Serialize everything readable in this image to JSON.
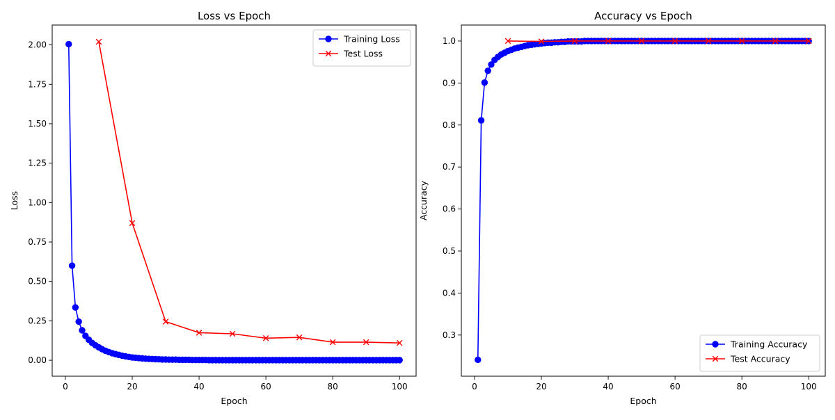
{
  "chart_data": [
    {
      "type": "line",
      "title": "Loss vs Epoch",
      "xlabel": "Epoch",
      "ylabel": "Loss",
      "xlim": [
        -3.95,
        104.95
      ],
      "ylim": [
        -0.101,
        2.126
      ],
      "xticks": [
        0,
        20,
        40,
        60,
        80,
        100
      ],
      "yticks": [
        0.0,
        0.25,
        0.5,
        0.75,
        1.0,
        1.25,
        1.5,
        1.75,
        2.0
      ],
      "ytick_labels": [
        "0.00",
        "0.25",
        "0.50",
        "0.75",
        "1.00",
        "1.25",
        "1.50",
        "1.75",
        "2.00"
      ],
      "legend_position": "top-right",
      "series": [
        {
          "name": "Training Loss",
          "color": "#0000ff",
          "marker": "circle",
          "x": [
            1,
            2,
            3,
            4,
            5,
            6,
            7,
            8,
            9,
            10,
            11,
            12,
            13,
            14,
            15,
            16,
            17,
            18,
            19,
            20,
            21,
            22,
            23,
            24,
            25,
            26,
            27,
            28,
            29,
            30,
            31,
            32,
            33,
            34,
            35,
            36,
            37,
            38,
            39,
            40,
            41,
            42,
            43,
            44,
            45,
            46,
            47,
            48,
            49,
            50,
            51,
            52,
            53,
            54,
            55,
            56,
            57,
            58,
            59,
            60,
            61,
            62,
            63,
            64,
            65,
            66,
            67,
            68,
            69,
            70,
            71,
            72,
            73,
            74,
            75,
            76,
            77,
            78,
            79,
            80,
            81,
            82,
            83,
            84,
            85,
            86,
            87,
            88,
            89,
            90,
            91,
            92,
            93,
            94,
            95,
            96,
            97,
            98,
            99,
            100
          ],
          "y": [
            2.005,
            0.6,
            0.335,
            0.245,
            0.19,
            0.155,
            0.13,
            0.11,
            0.095,
            0.082,
            0.07,
            0.06,
            0.052,
            0.045,
            0.039,
            0.034,
            0.029,
            0.025,
            0.021,
            0.018,
            0.016,
            0.014,
            0.012,
            0.01,
            0.009,
            0.008,
            0.007,
            0.006,
            0.005,
            0.005,
            0.004,
            0.004,
            0.004,
            0.003,
            0.003,
            0.003,
            0.003,
            0.002,
            0.002,
            0.002,
            0.002,
            0.002,
            0.001,
            0.001,
            0.001,
            0.001,
            0.001,
            0.001,
            0.001,
            0.001,
            0.001,
            0.001,
            0.001,
            0.001,
            0.001,
            0.001,
            0.001,
            0.001,
            0.001,
            0.001,
            0.001,
            0.001,
            0.001,
            0.001,
            0.001,
            0.001,
            0.001,
            0.001,
            0.001,
            0.001,
            0.001,
            0.001,
            0.001,
            0.001,
            0.001,
            0.001,
            0.001,
            0.001,
            0.001,
            0.001,
            0.001,
            0.001,
            0.001,
            0.001,
            0.001,
            0.001,
            0.001,
            0.001,
            0.001,
            0.001,
            0.001,
            0.001,
            0.001,
            0.001,
            0.001,
            0.001,
            0.001,
            0.001,
            0.001,
            0.001
          ]
        },
        {
          "name": "Test Loss",
          "color": "#ff0000",
          "marker": "x",
          "x": [
            10,
            20,
            30,
            40,
            50,
            60,
            70,
            80,
            90,
            100
          ],
          "y": [
            2.02,
            0.87,
            0.245,
            0.175,
            0.168,
            0.14,
            0.145,
            0.115,
            0.115,
            0.11
          ]
        }
      ]
    },
    {
      "type": "line",
      "title": "Accuracy vs Epoch",
      "xlabel": "Epoch",
      "ylabel": "Accuracy",
      "xlim": [
        -3.95,
        104.95
      ],
      "ylim": [
        0.202,
        1.038
      ],
      "xticks": [
        0,
        20,
        40,
        60,
        80,
        100
      ],
      "yticks": [
        0.3,
        0.4,
        0.5,
        0.6,
        0.7,
        0.8,
        0.9,
        1.0
      ],
      "ytick_labels": [
        "0.3",
        "0.4",
        "0.5",
        "0.6",
        "0.7",
        "0.8",
        "0.9",
        "1.0"
      ],
      "legend_position": "bottom-right",
      "series": [
        {
          "name": "Training Accuracy",
          "color": "#0000ff",
          "marker": "circle",
          "x": [
            1,
            2,
            3,
            4,
            5,
            6,
            7,
            8,
            9,
            10,
            11,
            12,
            13,
            14,
            15,
            16,
            17,
            18,
            19,
            20,
            21,
            22,
            23,
            24,
            25,
            26,
            27,
            28,
            29,
            30,
            31,
            32,
            33,
            34,
            35,
            36,
            37,
            38,
            39,
            40,
            41,
            42,
            43,
            44,
            45,
            46,
            47,
            48,
            49,
            50,
            51,
            52,
            53,
            54,
            55,
            56,
            57,
            58,
            59,
            60,
            61,
            62,
            63,
            64,
            65,
            66,
            67,
            68,
            69,
            70,
            71,
            72,
            73,
            74,
            75,
            76,
            77,
            78,
            79,
            80,
            81,
            82,
            83,
            84,
            85,
            86,
            87,
            88,
            89,
            90,
            91,
            92,
            93,
            94,
            95,
            96,
            97,
            98,
            99,
            100
          ],
          "y": [
            0.241,
            0.811,
            0.901,
            0.929,
            0.944,
            0.955,
            0.962,
            0.968,
            0.972,
            0.976,
            0.979,
            0.982,
            0.984,
            0.986,
            0.988,
            0.99,
            0.991,
            0.992,
            0.993,
            0.994,
            0.995,
            0.996,
            0.996,
            0.997,
            0.997,
            0.998,
            0.998,
            0.999,
            0.999,
            0.999,
            0.999,
            0.999,
            1.0,
            1.0,
            1.0,
            1.0,
            1.0,
            1.0,
            1.0,
            1.0,
            1.0,
            1.0,
            1.0,
            1.0,
            1.0,
            1.0,
            1.0,
            1.0,
            1.0,
            1.0,
            1.0,
            1.0,
            1.0,
            1.0,
            1.0,
            1.0,
            1.0,
            1.0,
            1.0,
            1.0,
            1.0,
            1.0,
            1.0,
            1.0,
            1.0,
            1.0,
            1.0,
            1.0,
            1.0,
            1.0,
            1.0,
            1.0,
            1.0,
            1.0,
            1.0,
            1.0,
            1.0,
            1.0,
            1.0,
            1.0,
            1.0,
            1.0,
            1.0,
            1.0,
            1.0,
            1.0,
            1.0,
            1.0,
            1.0,
            1.0,
            1.0,
            1.0,
            1.0,
            1.0,
            1.0,
            1.0,
            1.0,
            1.0,
            1.0,
            1.0
          ]
        },
        {
          "name": "Test Accuracy",
          "color": "#ff0000",
          "marker": "x",
          "x": [
            10,
            20,
            30,
            40,
            50,
            60,
            70,
            80,
            90,
            100
          ],
          "y": [
            1.0,
            0.999,
            1.0,
            1.0,
            1.0,
            1.0,
            1.0,
            1.0,
            1.0,
            1.0
          ]
        }
      ]
    }
  ]
}
